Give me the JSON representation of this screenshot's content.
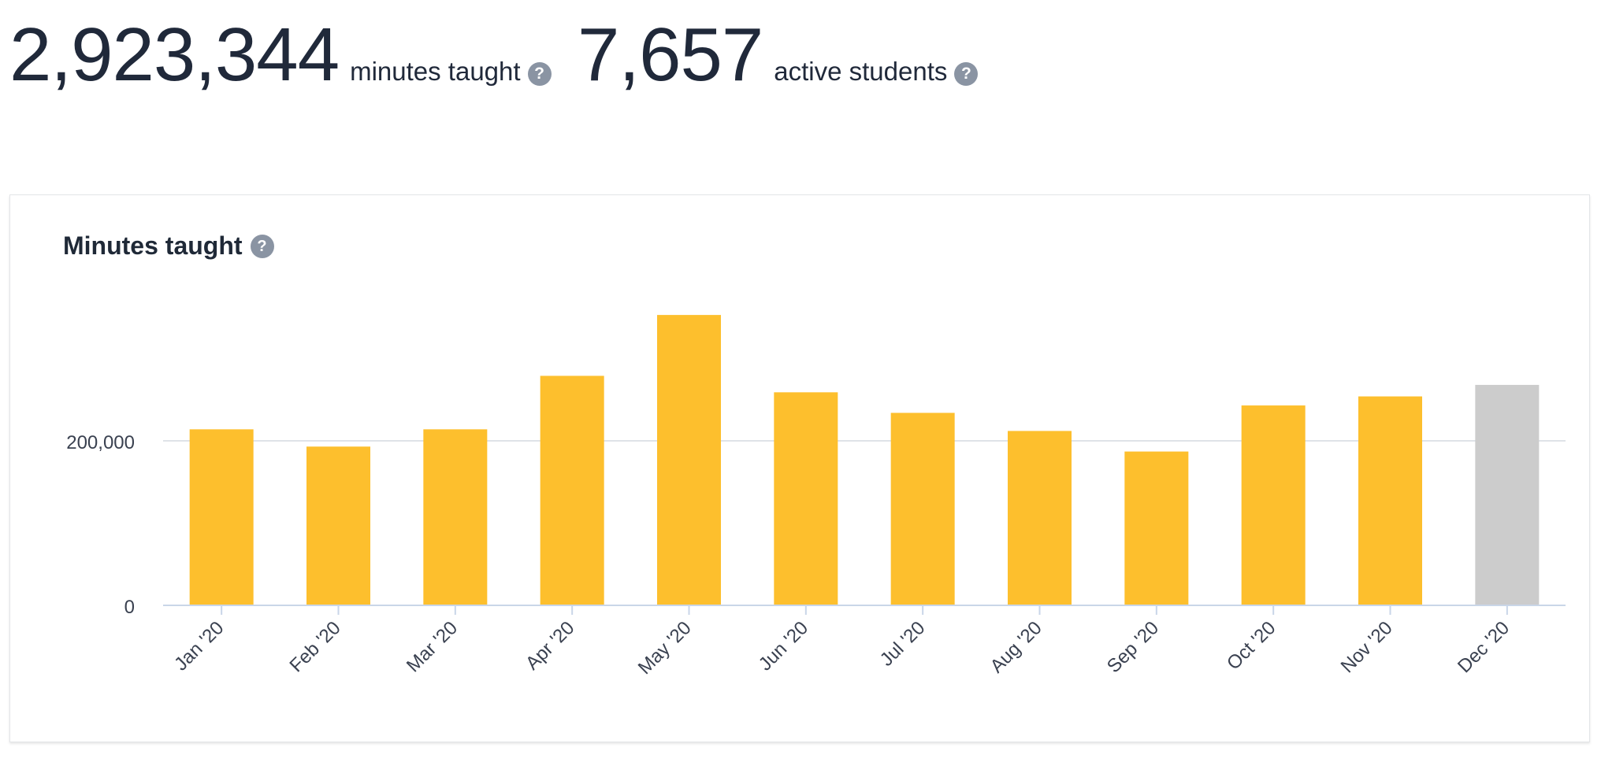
{
  "stats": {
    "minutes": {
      "value": "2,923,344",
      "label": "minutes taught",
      "help": "?"
    },
    "students": {
      "value": "7,657",
      "label": "active students",
      "help": "?"
    }
  },
  "card": {
    "title": "Minutes taught",
    "help": "?"
  },
  "chart_data": {
    "type": "bar",
    "title": "Minutes taught",
    "categories": [
      "Jan '20",
      "Feb '20",
      "Mar '20",
      "Apr '20",
      "May '20",
      "Jun '20",
      "Jul '20",
      "Aug '20",
      "Sep '20",
      "Oct '20",
      "Nov '20",
      "Dec '20"
    ],
    "values": [
      214000,
      193000,
      214000,
      279000,
      353000,
      259000,
      234000,
      212000,
      187000,
      243000,
      254000,
      268000
    ],
    "highlight_last": true,
    "colors": {
      "bar": "#fdbf2d",
      "current": "#cccccc",
      "grid": "#dfe3e8",
      "axis": "#c9d6e8"
    },
    "yticks": [
      0,
      200000
    ],
    "ytick_labels": [
      "0",
      "200,000"
    ],
    "ylim": [
      0,
      400000
    ],
    "grid": true,
    "legend": "none"
  }
}
